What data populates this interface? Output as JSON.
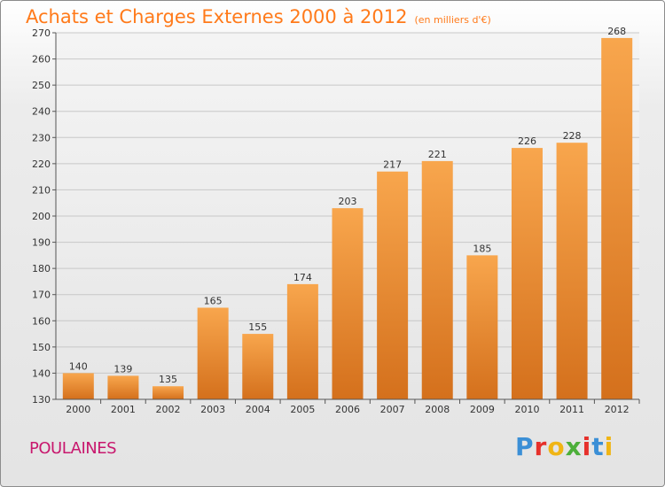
{
  "header": {
    "title": "Achats et Charges Externes 2000 à 2012",
    "subtitle": "(en milliers d'€)"
  },
  "footer": {
    "commune": "POULAINES",
    "brand": "Proxiti",
    "brand_colors": [
      "#3b8fd6",
      "#e6302b",
      "#f0b515",
      "#4caf3a",
      "#e6302b",
      "#3b8fd6",
      "#f0b515"
    ]
  },
  "chart_data": {
    "type": "bar",
    "title": "Achats et Charges Externes 2000 à 2012",
    "subtitle": "(en milliers d'€)",
    "categories": [
      "2000",
      "2001",
      "2002",
      "2003",
      "2004",
      "2005",
      "2006",
      "2007",
      "2008",
      "2009",
      "2010",
      "2011",
      "2012"
    ],
    "values": [
      140,
      139,
      135,
      165,
      155,
      174,
      203,
      217,
      221,
      185,
      226,
      228,
      268
    ],
    "ylim": [
      130,
      270
    ],
    "yticks": [
      130,
      140,
      150,
      160,
      170,
      180,
      190,
      200,
      210,
      220,
      230,
      240,
      250,
      260,
      270
    ],
    "grid": true,
    "bar_color_top": "#f8a64d",
    "bar_color_bottom": "#d4701c"
  }
}
